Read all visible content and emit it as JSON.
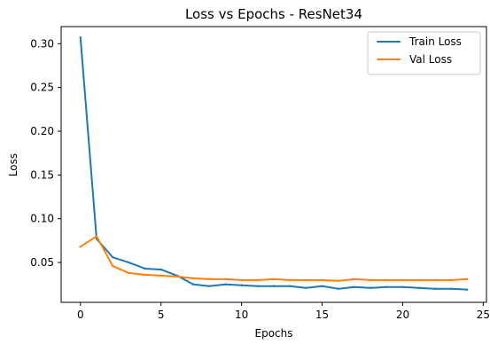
{
  "chart_data": {
    "type": "line",
    "title": "Loss vs Epochs - ResNet34",
    "xlabel": "Epochs",
    "ylabel": "Loss",
    "xlim": [
      -1.2,
      25.2
    ],
    "ylim": [
      0.0045,
      0.3195
    ],
    "xticks": [
      0,
      5,
      10,
      15,
      20,
      25
    ],
    "yticks": [
      0.05,
      0.1,
      0.15,
      0.2,
      0.25,
      0.3
    ],
    "ytick_labels": [
      "0.05",
      "0.10",
      "0.15",
      "0.20",
      "0.25",
      "0.30"
    ],
    "grid": false,
    "legend_position": "top-right",
    "x": [
      0,
      1,
      2,
      3,
      4,
      5,
      6,
      7,
      8,
      9,
      10,
      11,
      12,
      13,
      14,
      15,
      16,
      17,
      18,
      19,
      20,
      21,
      22,
      23,
      24
    ],
    "series": [
      {
        "name": "Train Loss",
        "color": "#1f77b4",
        "values": [
          0.307,
          0.077,
          0.056,
          0.05,
          0.043,
          0.042,
          0.035,
          0.025,
          0.023,
          0.025,
          0.024,
          0.023,
          0.023,
          0.023,
          0.021,
          0.023,
          0.02,
          0.022,
          0.021,
          0.022,
          0.022,
          0.021,
          0.02,
          0.02,
          0.019
        ]
      },
      {
        "name": "Val Loss",
        "color": "#ff7f0e",
        "values": [
          0.068,
          0.08,
          0.046,
          0.038,
          0.036,
          0.035,
          0.034,
          0.032,
          0.031,
          0.031,
          0.03,
          0.03,
          0.031,
          0.03,
          0.03,
          0.03,
          0.029,
          0.031,
          0.03,
          0.03,
          0.03,
          0.03,
          0.03,
          0.03,
          0.031
        ]
      }
    ]
  }
}
